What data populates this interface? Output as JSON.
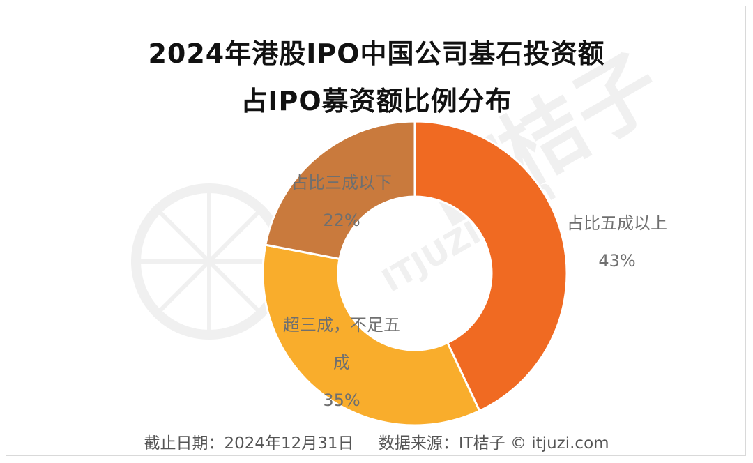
{
  "chart_data": {
    "type": "pie",
    "title": "2024年港股IPO中国公司基石投资额",
    "subtitle": "占IPO募资额比例分布",
    "categories": [
      "占比五成以上",
      "超三成，不足五成",
      "占比三成以下"
    ],
    "values": [
      43,
      35,
      22
    ],
    "value_labels": [
      "43%",
      "35%",
      "22%"
    ],
    "colors": [
      "#f06a22",
      "#f9ad2c",
      "#c97a3d"
    ]
  },
  "watermark": {
    "text": "ITJUZI.com",
    "brand": "IT桔子"
  },
  "footer": {
    "date": "截止日期：2024年12月31日",
    "source": "数据来源：IT桔子 © itjuzi.com"
  }
}
